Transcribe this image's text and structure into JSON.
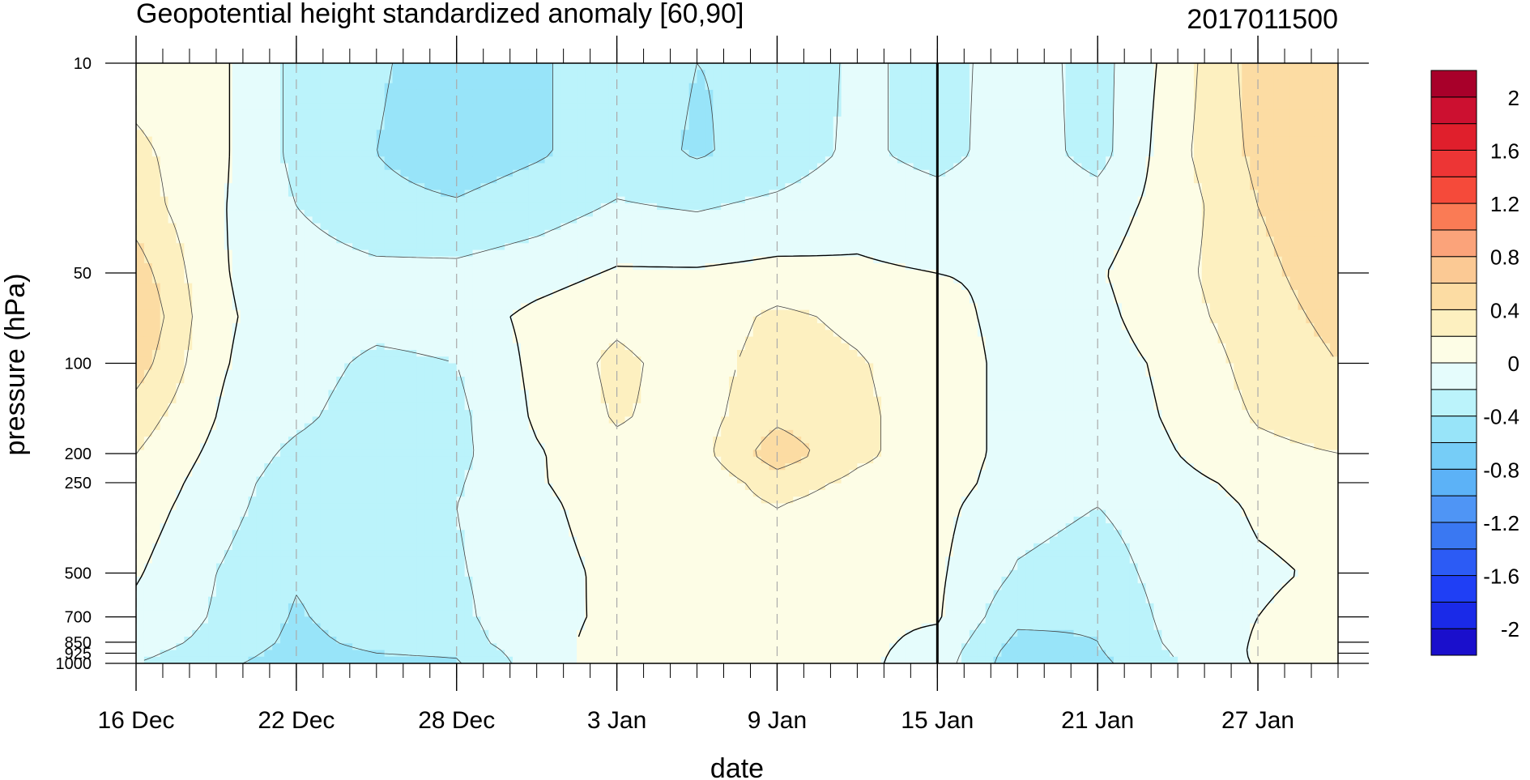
{
  "chart_data": {
    "type": "heatmap",
    "title": "Geopotential height standardized anomaly [60,90]",
    "subtitle_right": "2017011500",
    "xlabel": "date",
    "ylabel": "pressure (hPa)",
    "x_ticks": [
      "16 Dec",
      "22 Dec",
      "28 Dec",
      "3 Jan",
      "9 Jan",
      "15 Jan",
      "21 Jan",
      "27 Jan"
    ],
    "x_start": "16 Dec",
    "x_end": "30 Jan",
    "marked_date": "15 Jan",
    "y_scale": "log",
    "y_direction": "decreasing-up",
    "y_range": [
      1000,
      10
    ],
    "y_ticks": [
      "10",
      "50",
      "100",
      "200",
      "250",
      "500",
      "700",
      "850",
      "925",
      "1000"
    ],
    "dates": [
      "16 Dec",
      "19 Dec",
      "22 Dec",
      "25 Dec",
      "28 Dec",
      "31 Dec",
      "3 Jan",
      "6 Jan",
      "9 Jan",
      "12 Jan",
      "15 Jan",
      "18 Jan",
      "21 Jan",
      "24 Jan",
      "27 Jan",
      "30 Jan"
    ],
    "pressures": [
      10,
      20,
      30,
      50,
      70,
      100,
      150,
      200,
      250,
      300,
      500,
      700,
      850,
      925,
      1000
    ],
    "values": [
      [
        0.1,
        0.05,
        -0.25,
        -0.38,
        -0.48,
        -0.42,
        -0.32,
        -0.4,
        -0.38,
        -0.15,
        -0.28,
        -0.1,
        -0.28,
        0.1,
        0.5,
        0.6
      ],
      [
        0.25,
        0.05,
        -0.25,
        -0.4,
        -0.5,
        -0.42,
        -0.32,
        -0.42,
        -0.33,
        -0.15,
        -0.28,
        -0.08,
        -0.28,
        0.15,
        0.45,
        0.6
      ],
      [
        0.3,
        0.03,
        -0.2,
        -0.35,
        -0.38,
        -0.3,
        -0.18,
        -0.22,
        -0.15,
        -0.05,
        -0.1,
        -0.05,
        -0.1,
        0.1,
        0.4,
        0.55
      ],
      [
        0.5,
        0.02,
        -0.1,
        -0.15,
        -0.15,
        -0.08,
        0.02,
        0.02,
        0.05,
        0.02,
        0.0,
        -0.02,
        -0.02,
        0.15,
        0.35,
        0.5
      ],
      [
        0.6,
        0.03,
        -0.08,
        -0.12,
        -0.1,
        0.05,
        0.15,
        0.06,
        0.25,
        0.15,
        0.05,
        -0.05,
        -0.05,
        0.12,
        0.32,
        0.45
      ],
      [
        0.5,
        0.02,
        -0.1,
        -0.25,
        -0.2,
        0.05,
        0.25,
        0.1,
        0.3,
        0.22,
        0.08,
        -0.05,
        -0.08,
        0.05,
        0.28,
        0.4
      ],
      [
        0.3,
        0.0,
        -0.15,
        -0.32,
        -0.25,
        0.03,
        0.22,
        0.12,
        0.35,
        0.25,
        0.08,
        -0.05,
        -0.1,
        0.03,
        0.22,
        0.3
      ],
      [
        0.2,
        -0.05,
        -0.25,
        -0.35,
        -0.25,
        -0.02,
        0.15,
        0.12,
        0.52,
        0.25,
        0.08,
        -0.05,
        -0.12,
        0.0,
        0.15,
        0.2
      ],
      [
        0.15,
        -0.1,
        -0.3,
        -0.4,
        -0.22,
        -0.02,
        0.12,
        0.05,
        0.3,
        0.15,
        0.08,
        -0.08,
        -0.15,
        -0.05,
        0.05,
        0.1
      ],
      [
        0.1,
        -0.12,
        -0.32,
        -0.38,
        -0.2,
        -0.05,
        0.1,
        0.08,
        0.2,
        0.1,
        0.05,
        -0.12,
        -0.2,
        -0.08,
        0.02,
        0.05
      ],
      [
        0.02,
        -0.2,
        -0.38,
        -0.3,
        -0.22,
        -0.08,
        0.05,
        0.15,
        0.12,
        0.05,
        0.03,
        -0.22,
        -0.3,
        -0.1,
        -0.02,
        0.02
      ],
      [
        -0.05,
        -0.22,
        -0.42,
        -0.3,
        -0.25,
        -0.05,
        0.03,
        0.15,
        0.08,
        0.03,
        0.02,
        -0.35,
        -0.38,
        -0.12,
        0.0,
        0.05
      ],
      [
        -0.12,
        -0.25,
        -0.45,
        -0.35,
        -0.3,
        -0.05,
        0.05,
        0.15,
        0.05,
        0.05,
        -0.05,
        -0.45,
        -0.4,
        -0.15,
        0.02,
        0.1
      ],
      [
        -0.15,
        -0.3,
        -0.48,
        -0.4,
        -0.38,
        -0.08,
        0.08,
        0.12,
        0.03,
        0.05,
        -0.08,
        -0.5,
        -0.42,
        -0.18,
        0.03,
        0.12
      ],
      [
        -0.2,
        -0.35,
        -0.5,
        -0.45,
        -0.42,
        -0.1,
        0.1,
        0.1,
        0.02,
        0.05,
        -0.1,
        -0.52,
        -0.45,
        -0.2,
        0.02,
        0.1
      ]
    ],
    "colorbar": {
      "levels": [
        -2.2,
        -2.0,
        -1.8,
        -1.6,
        -1.4,
        -1.2,
        -1.0,
        -0.8,
        -0.6,
        -0.4,
        -0.2,
        0.0,
        0.2,
        0.4,
        0.6,
        0.8,
        1.0,
        1.2,
        1.4,
        1.6,
        1.8,
        2.0,
        2.2
      ],
      "labels": [
        "2",
        "1.6",
        "1.2",
        "0.8",
        "0.4",
        "0",
        "-0.4",
        "-0.8",
        "-1.2",
        "-1.6",
        "-2"
      ],
      "colors": [
        "#1a0fcc",
        "#1a2ae8",
        "#1f3ff5",
        "#2c5bf5",
        "#3a78f2",
        "#4f95f5",
        "#5cb2f7",
        "#76cdf7",
        "#98e4f9",
        "#bbf3fb",
        "#e5fcfc",
        "#fdfde6",
        "#fdf0c0",
        "#fcdca3",
        "#fbc994",
        "#fba37a",
        "#fa7b55",
        "#f54a3a",
        "#ed3535",
        "#e01f2c",
        "#cc1030",
        "#a8002a"
      ]
    }
  }
}
